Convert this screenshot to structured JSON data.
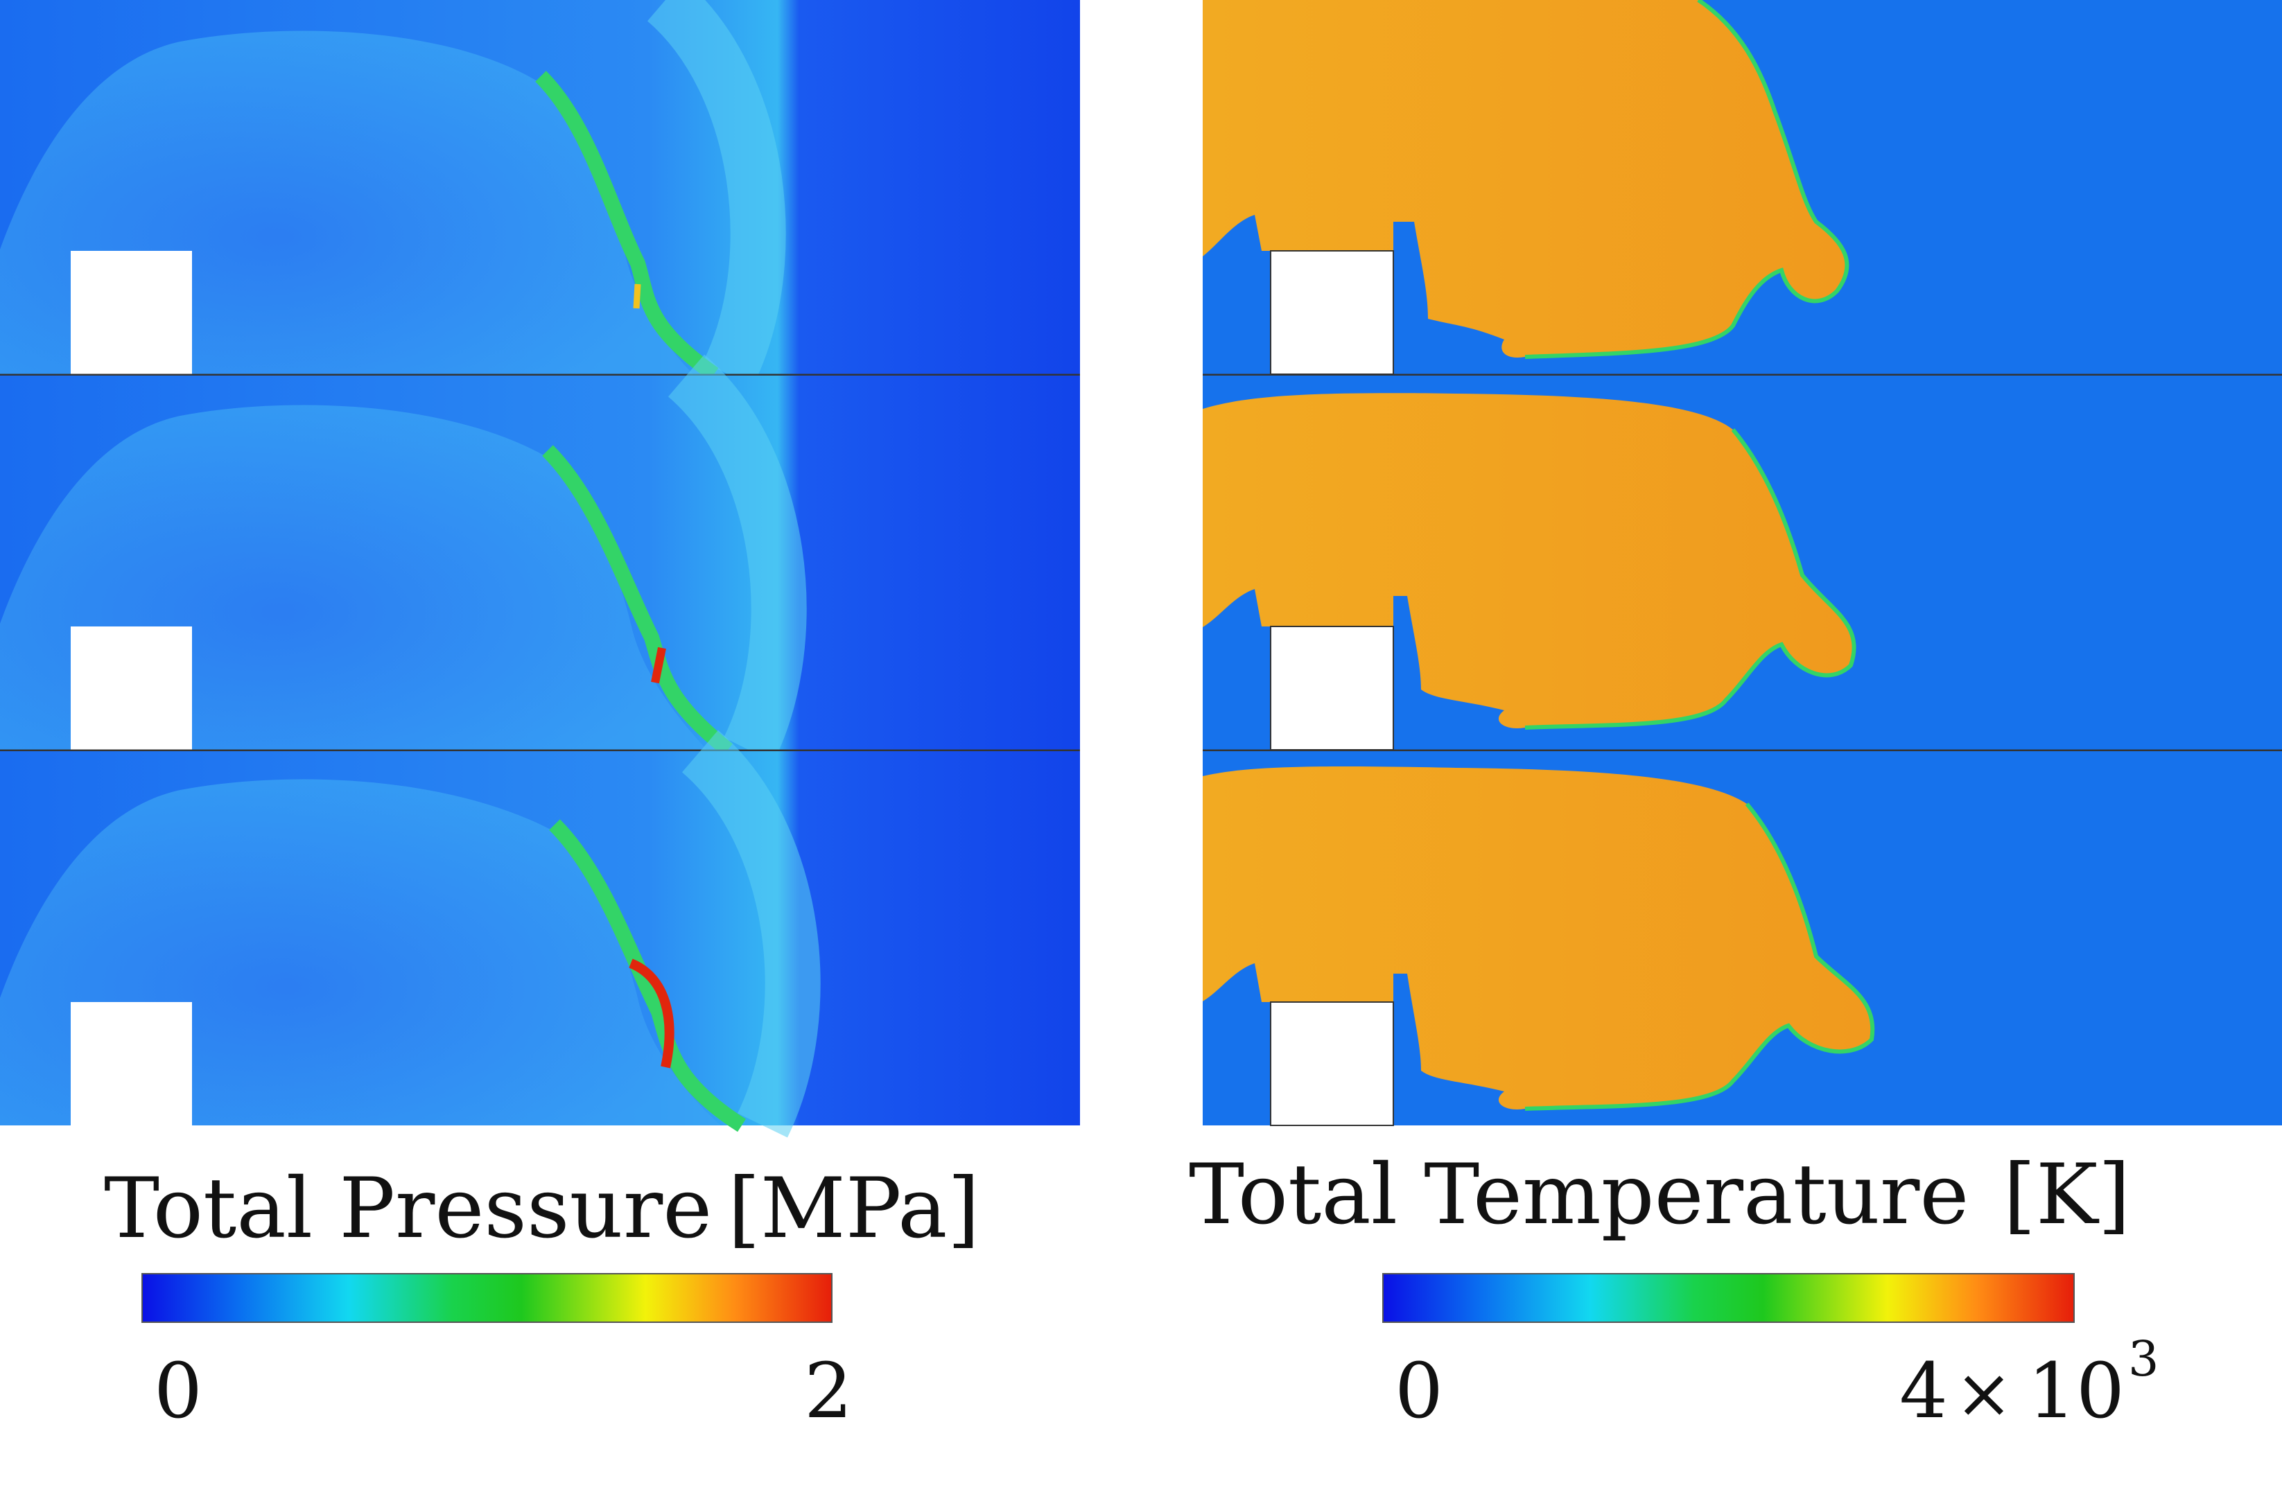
{
  "panels": {
    "pressure": {
      "title": "Total Pressure",
      "unit": "[MPa]",
      "colorbar_min": "0",
      "colorbar_max": "2"
    },
    "temperature": {
      "title": "Total Temperature",
      "unit": "[K]",
      "colorbar_min": "0",
      "colorbar_max_mantissa": "4",
      "colorbar_max_times": "×",
      "colorbar_max_base": "10",
      "colorbar_max_exponent": "3"
    }
  },
  "frames_per_panel": 3,
  "colormap": [
    "#0a10e6",
    "#0a6ef0",
    "#12d8f0",
    "#19d24c",
    "#1ec81e",
    "#f2f20a",
    "#ff8c14",
    "#e61e0a"
  ],
  "colors": {
    "background_low": "#1255ee",
    "temperature_field": "#f3a823",
    "temperature_ambient": "#1672ec",
    "shock_front": "#4fc7f0",
    "reaction_zone": "#33d467",
    "hot_spot": "#e1260d",
    "obstacle": "#ffffff"
  }
}
